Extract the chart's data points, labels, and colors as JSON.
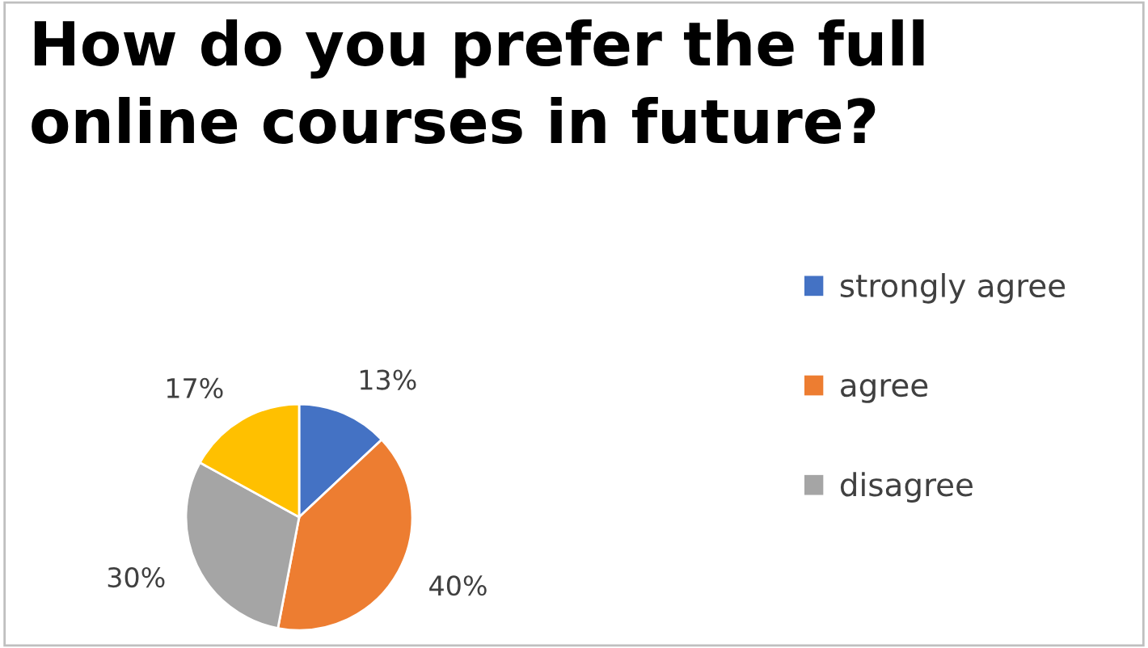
{
  "chart_data": {
    "type": "pie",
    "title": "How do you prefer the full\nonline courses in future?",
    "categories": [
      "strongly agree",
      "agree",
      "disagree",
      null
    ],
    "values": [
      13,
      40,
      30,
      17
    ],
    "colors": [
      "#4472c4",
      "#ed7d31",
      "#a5a5a5",
      "#ffc000"
    ],
    "value_labels": [
      "13%",
      "40%",
      "30%",
      "17%"
    ],
    "legend": "right"
  }
}
